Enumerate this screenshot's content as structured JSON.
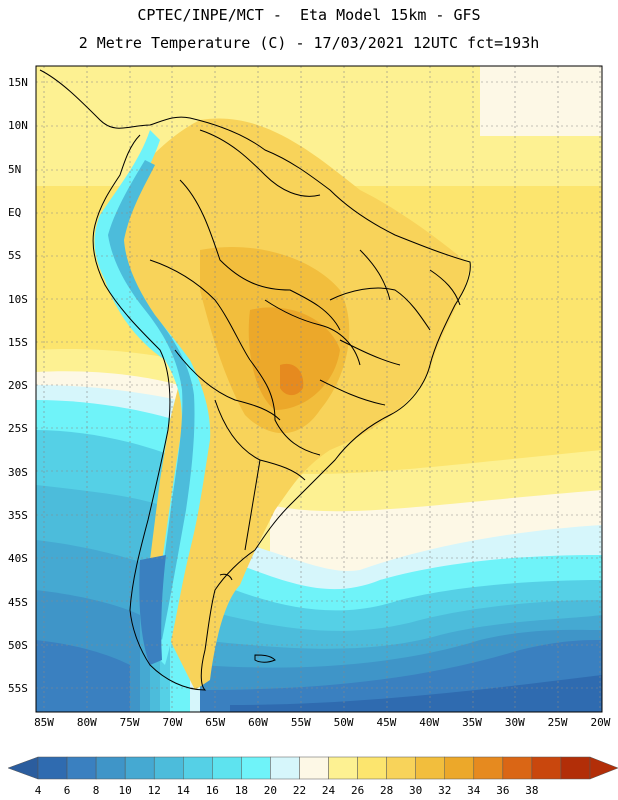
{
  "title_line1": "CPTEC/INPE/MCT -  Eta Model 15km - GFS",
  "title_line2": "2 Metre Temperature (C) - 17/03/2021 12UTC fct=193h",
  "map": {
    "region": "South America",
    "lat_labels": [
      "15N",
      "10N",
      "5N",
      "EQ",
      "5S",
      "10S",
      "15S",
      "20S",
      "25S",
      "30S",
      "35S",
      "40S",
      "45S",
      "50S",
      "55S"
    ],
    "lon_labels": [
      "85W",
      "80W",
      "75W",
      "70W",
      "65W",
      "60W",
      "55W",
      "50W",
      "45W",
      "40W",
      "35W",
      "30W",
      "25W",
      "20W"
    ]
  },
  "colorbar": {
    "ticks": [
      "4",
      "6",
      "8",
      "10",
      "12",
      "14",
      "16",
      "18",
      "20",
      "22",
      "24",
      "26",
      "28",
      "30",
      "32",
      "34",
      "36",
      "38"
    ],
    "colors": [
      "#2f6bb0",
      "#3a80c0",
      "#3f95c8",
      "#45a9d2",
      "#4cbcdb",
      "#55d0e6",
      "#5ee3ef",
      "#6ff3f9",
      "#d6f6fb",
      "#fdf8e6",
      "#fdf192",
      "#fce56e",
      "#f8d35a",
      "#f2be3d",
      "#eca82a",
      "#e68a1f",
      "#da6615",
      "#c9470d",
      "#b22e08"
    ],
    "under_color": "#2b5d9e",
    "over_color": "#b22e08"
  }
}
